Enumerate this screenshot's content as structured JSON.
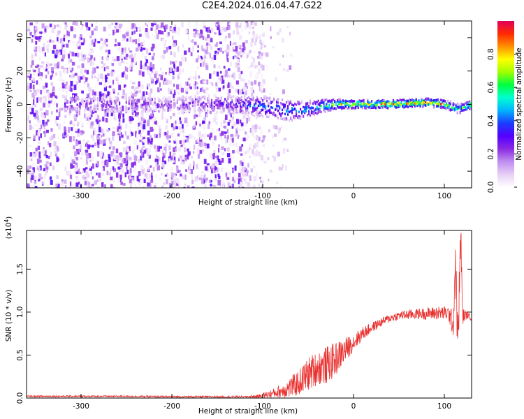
{
  "title": "C2E4.2024.016.04.47.G22",
  "chart_data": [
    {
      "type": "heatmap",
      "xlabel": "Height of straight line (km)",
      "ylabel": "Frequency (Hz)",
      "xlim": [
        -360,
        130
      ],
      "ylim": [
        -50,
        50
      ],
      "x_ticks": [
        -300,
        -200,
        -100,
        0,
        100
      ],
      "y_ticks": [
        -40,
        -20,
        0,
        20,
        40
      ],
      "colorbar": {
        "label": "Normalized spectral amplitude",
        "range": [
          0,
          1
        ],
        "ticks": [
          "0.0",
          "0.2",
          "0.4",
          "0.6",
          "0.8"
        ],
        "tick_values": [
          0.0,
          0.2,
          0.4,
          0.6,
          0.8
        ],
        "colors": [
          "#ffffff",
          "#e6cff5",
          "#c08ef0",
          "#8a2be2",
          "#5500ff",
          "#1c3cff",
          "#00b4ff",
          "#00ffd0",
          "#00ff40",
          "#a0ff00",
          "#ffff00",
          "#ff9000",
          "#ff2a00",
          "#e0005a"
        ]
      },
      "features": {
        "noise_region_x": [
          -360,
          -100
        ],
        "carrier_segments": [
          {
            "x": -320,
            "freq": 0,
            "width_hz": 10,
            "amplitude": 0.3
          },
          {
            "x": -290,
            "freq": 0,
            "width_hz": 10,
            "amplitude": 0.3
          },
          {
            "x": -200,
            "freq": 0,
            "width_hz": 8,
            "amplitude": 0.25
          },
          {
            "x": -175,
            "freq": 0,
            "width_hz": 10,
            "amplitude": 0.3
          },
          {
            "x": -130,
            "freq": 0,
            "width_hz": 10,
            "amplitude": 0.35
          },
          {
            "x": -110,
            "freq": -1,
            "width_hz": 12,
            "amplitude": 0.45
          },
          {
            "x": -90,
            "freq": -2,
            "width_hz": 12,
            "amplitude": 0.5
          },
          {
            "x": -70,
            "freq": -4,
            "width_hz": 12,
            "amplitude": 0.55
          },
          {
            "x": -50,
            "freq": -3,
            "width_hz": 10,
            "amplitude": 0.55
          },
          {
            "x": -35,
            "freq": -1,
            "width_hz": 8,
            "amplitude": 0.6
          },
          {
            "x": -20,
            "freq": 0,
            "width_hz": 6,
            "amplitude": 0.8
          },
          {
            "x": 0,
            "freq": 0,
            "width_hz": 5,
            "amplitude": 0.9
          },
          {
            "x": 40,
            "freq": 0,
            "width_hz": 5,
            "amplitude": 0.95
          },
          {
            "x": 80,
            "freq": 1,
            "width_hz": 5,
            "amplitude": 0.95
          },
          {
            "x": 100,
            "freq": 0,
            "width_hz": 5,
            "amplitude": 0.9
          },
          {
            "x": 115,
            "freq": -3,
            "width_hz": 6,
            "amplitude": 0.6
          },
          {
            "x": 130,
            "freq": 0,
            "width_hz": 5,
            "amplitude": 0.9
          }
        ]
      }
    },
    {
      "type": "line",
      "xlabel": "Height of straight line (km)",
      "ylabel": "SNR (10 * v/v)",
      "y_multiplier": "(x10⁴)",
      "y_multiplier_base": "(x10",
      "y_multiplier_exp": "4",
      "xlim": [
        -360,
        130
      ],
      "ylim": [
        0,
        1.95
      ],
      "x_ticks": [
        -300,
        -200,
        -100,
        0,
        100
      ],
      "y_ticks": [
        "0.0",
        "0.5",
        "1.0",
        "1.5"
      ],
      "y_tick_values": [
        0.0,
        0.5,
        1.0,
        1.5
      ],
      "color": "#e8302e",
      "series": [
        {
          "x": [
            -360,
            -300,
            -250,
            -200,
            -150,
            -120,
            -105,
            -100,
            -90,
            -80,
            -70,
            -60,
            -50,
            -40,
            -30,
            -20,
            -10,
            0,
            10,
            20,
            30,
            40,
            50,
            60,
            70,
            80,
            90,
            100,
            105,
            110,
            112,
            115,
            118,
            120,
            125,
            130
          ],
          "y": [
            0.02,
            0.02,
            0.02,
            0.015,
            0.015,
            0.015,
            0.02,
            0.03,
            0.05,
            0.08,
            0.12,
            0.18,
            0.28,
            0.35,
            0.38,
            0.45,
            0.55,
            0.65,
            0.75,
            0.82,
            0.88,
            0.93,
            0.96,
            0.97,
            0.98,
            0.98,
            0.99,
            0.99,
            0.98,
            0.85,
            1.6,
            0.6,
            1.95,
            0.95,
            0.97,
            0.93
          ],
          "noise_amplitude": [
            0.01,
            0.01,
            0.01,
            0.01,
            0.01,
            0.01,
            0.02,
            0.03,
            0.05,
            0.08,
            0.12,
            0.15,
            0.2,
            0.2,
            0.22,
            0.2,
            0.15,
            0.1,
            0.08,
            0.06,
            0.05,
            0.05,
            0.05,
            0.06,
            0.06,
            0.07,
            0.08,
            0.08,
            0.1,
            0.15,
            0.3,
            0.3,
            0.3,
            0.1,
            0.04,
            0.03
          ]
        }
      ]
    }
  ]
}
